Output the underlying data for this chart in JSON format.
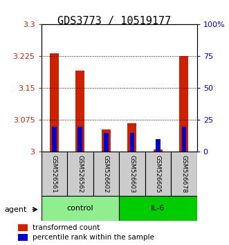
{
  "title": "GDS3773 / 10519177",
  "samples": [
    "GSM526561",
    "GSM526562",
    "GSM526602",
    "GSM526603",
    "GSM526605",
    "GSM526678"
  ],
  "red_tops": [
    3.232,
    3.192,
    3.053,
    3.067,
    3.005,
    3.226
  ],
  "red_bottoms": [
    3.0,
    3.0,
    3.0,
    3.0,
    3.0,
    3.0
  ],
  "blue_percentiles": [
    20,
    20,
    15,
    15,
    10,
    20
  ],
  "ylim_left": [
    3.0,
    3.3
  ],
  "ylim_right": [
    0,
    100
  ],
  "yticks_left": [
    3.0,
    3.075,
    3.15,
    3.225,
    3.3
  ],
  "yticks_right": [
    0,
    25,
    50,
    75,
    100
  ],
  "ytick_labels_left": [
    "3",
    "3.075",
    "3.15",
    "3.225",
    "3.3"
  ],
  "ytick_labels_right": [
    "0",
    "25",
    "50",
    "75",
    "100%"
  ],
  "groups": [
    {
      "label": "control",
      "start": 0,
      "end": 3,
      "color": "#90EE90"
    },
    {
      "label": "IL-6",
      "start": 3,
      "end": 6,
      "color": "#00CC00"
    }
  ],
  "group_row_label": "agent",
  "red_color": "#CC2200",
  "blue_color": "#0000CC",
  "sample_bg": "#CCCCCC",
  "title_fontsize": 11,
  "tick_fontsize": 8,
  "legend_fontsize": 7.5
}
